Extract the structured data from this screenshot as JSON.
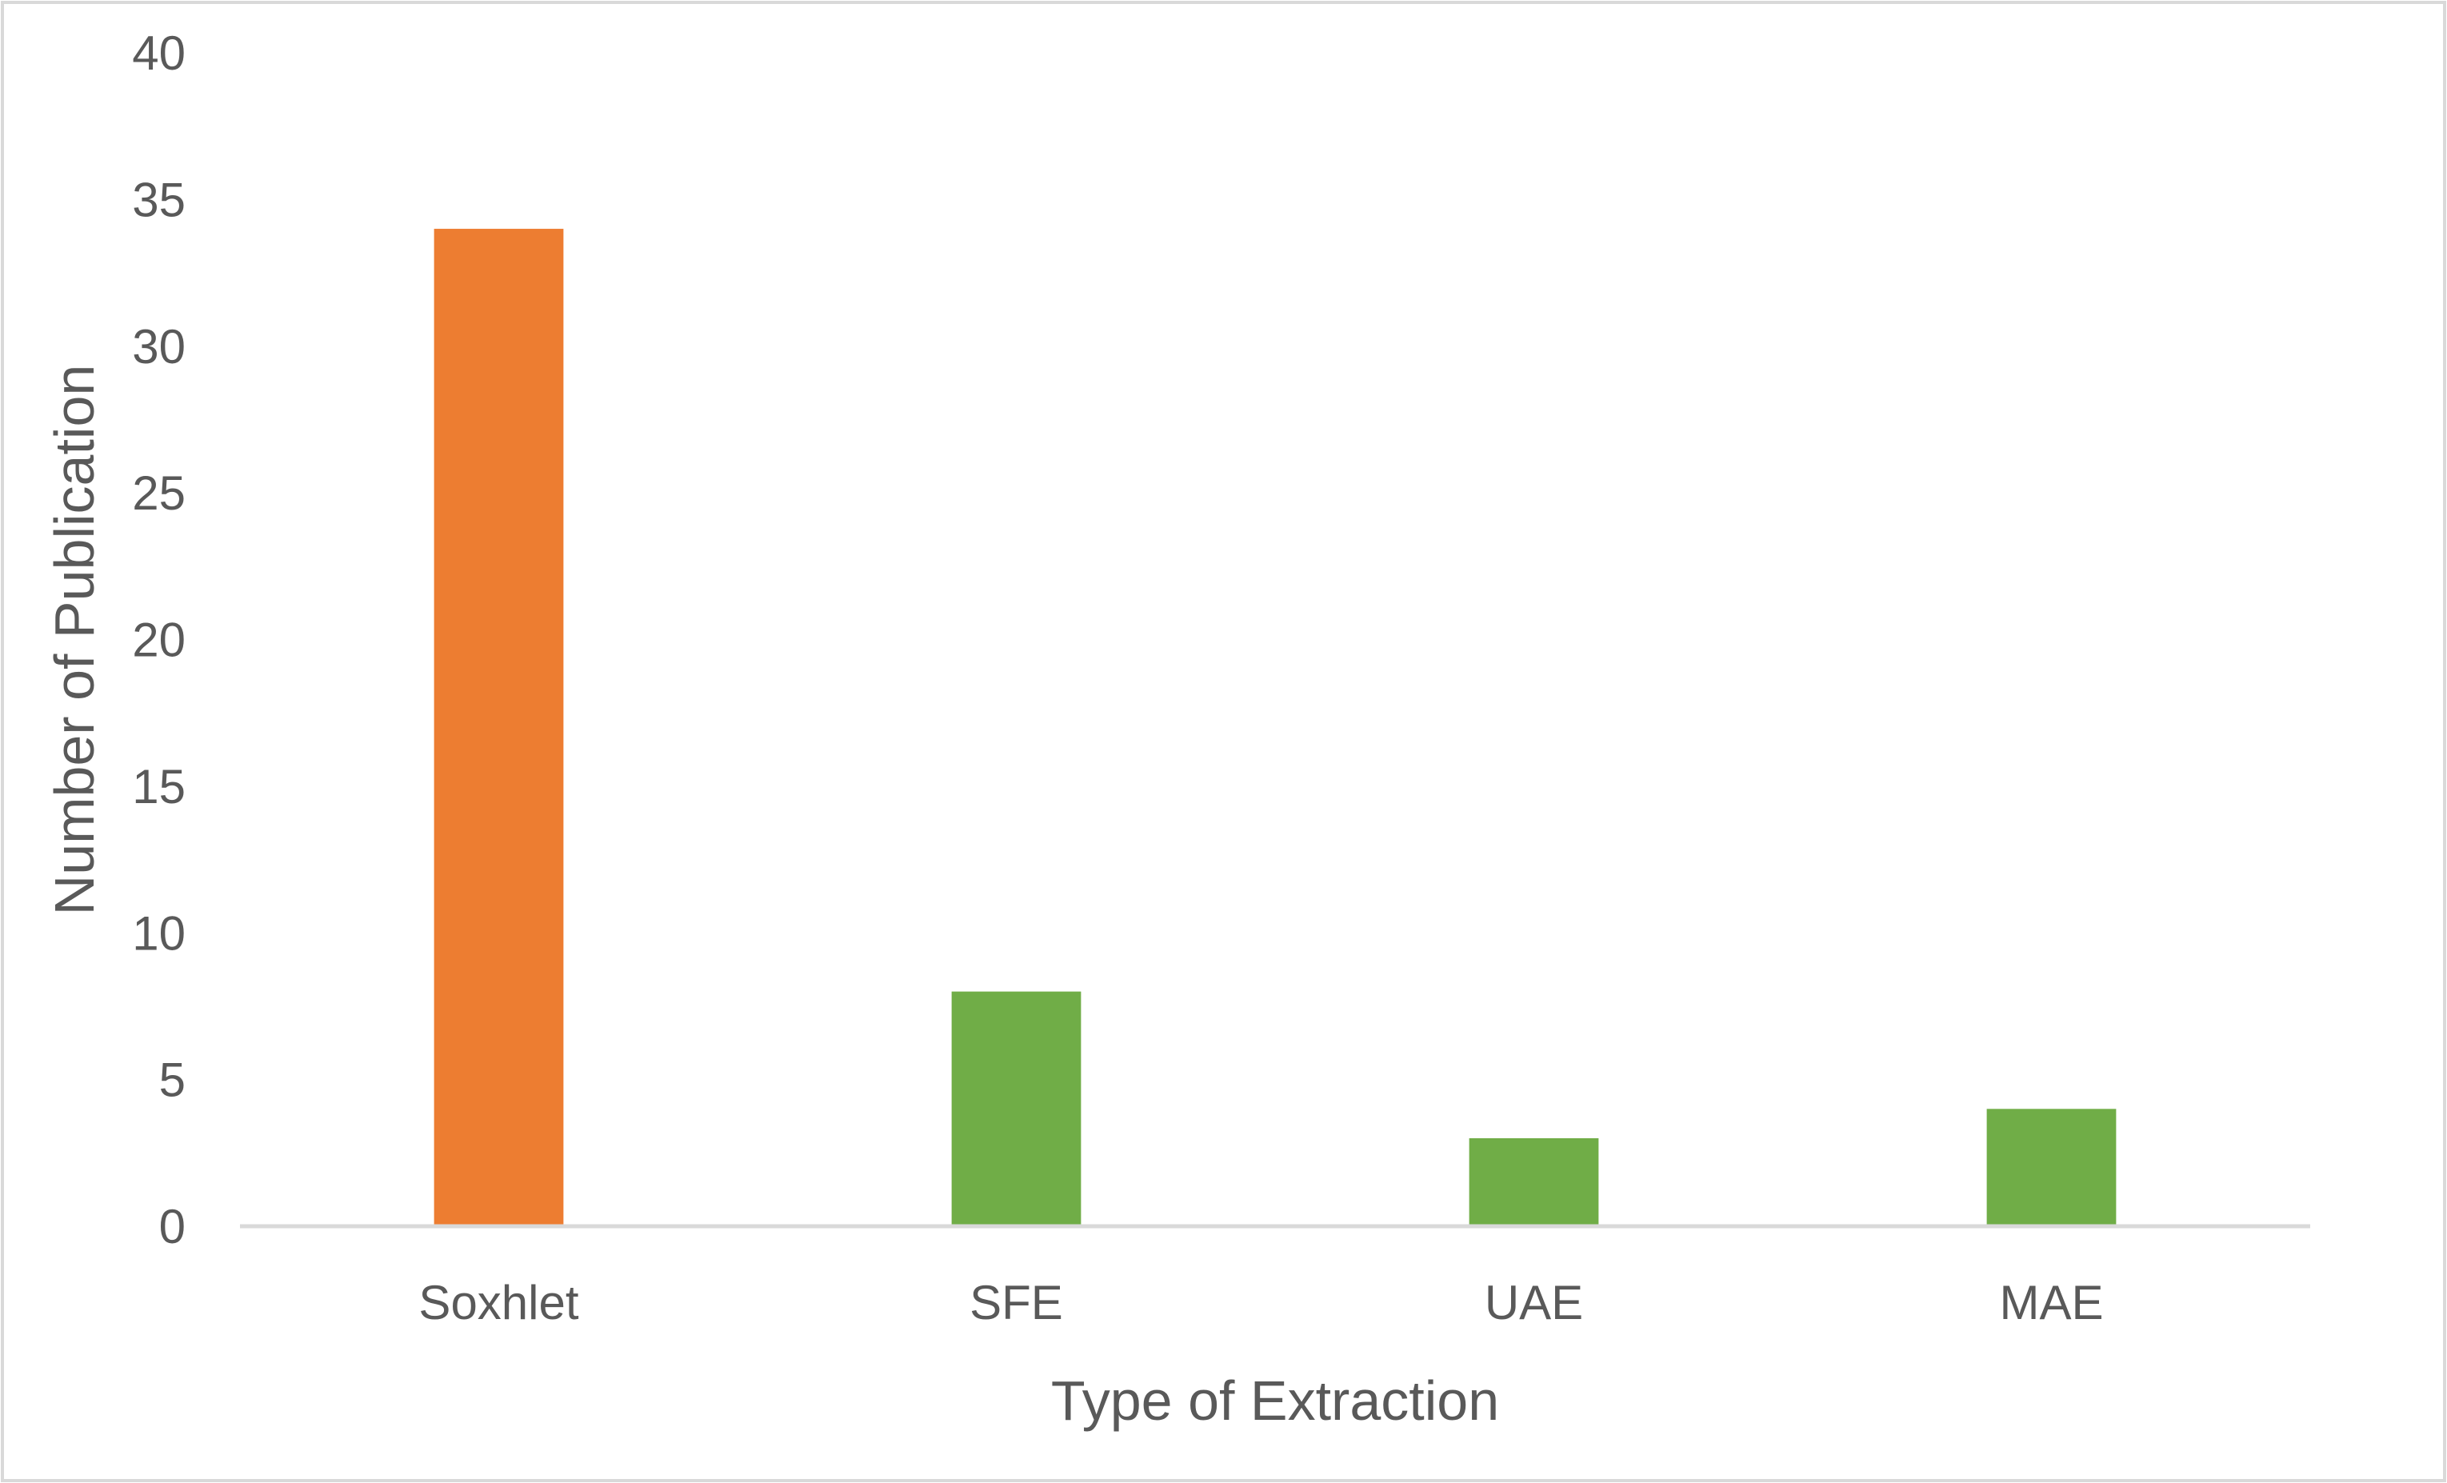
{
  "chart_data": {
    "type": "bar",
    "title": "",
    "xlabel": "Type of Extraction",
    "ylabel": "Number of Publication",
    "categories": [
      "Soxhlet",
      "SFE",
      "UAE",
      "MAE"
    ],
    "values": [
      34,
      8,
      3,
      4
    ],
    "bar_colors": [
      "#ED7D31",
      "#70AD47",
      "#70AD47",
      "#70AD47"
    ],
    "ylim": [
      0,
      40
    ],
    "yticks": [
      0,
      5,
      10,
      15,
      20,
      25,
      30,
      35,
      40
    ],
    "grid": false,
    "legend": "none"
  },
  "colors": {
    "text": "#595959",
    "axis_line": "#D9D9D9",
    "frame_border": "#D9D9D9",
    "background": "#FFFFFF"
  }
}
